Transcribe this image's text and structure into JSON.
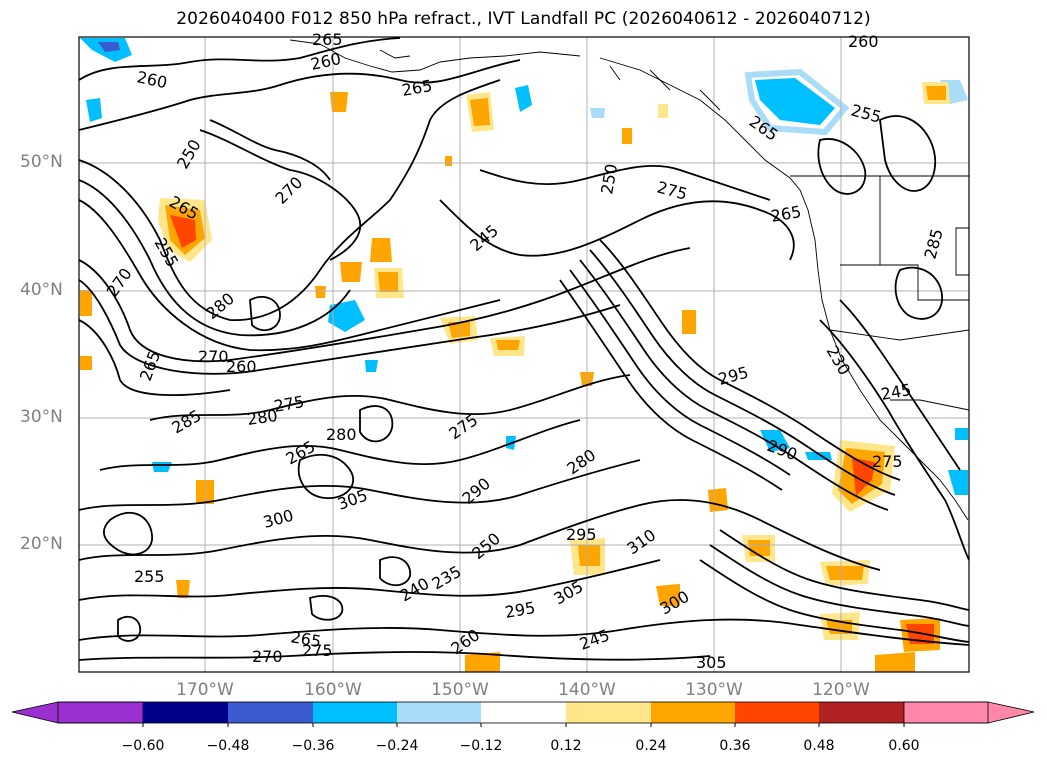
{
  "title": "2026040400 F012 850 hPa refract., IVT Landfall PC (2026040612 - 2026040712)",
  "map": {
    "lat_labels": [
      "50°N",
      "40°N",
      "30°N",
      "20°N"
    ],
    "lon_labels": [
      "170°W",
      "160°W",
      "150°W",
      "140°W",
      "130°W",
      "120°W"
    ],
    "contour_labels": [
      "260",
      "265",
      "260",
      "265",
      "260",
      "265",
      "255",
      "250",
      "265",
      "270",
      "255",
      "250",
      "245",
      "275",
      "265",
      "270",
      "280",
      "285",
      "270",
      "260",
      "265",
      "275",
      "285",
      "280",
      "280",
      "265",
      "275",
      "280",
      "290",
      "305",
      "300",
      "295",
      "310",
      "305",
      "300",
      "295",
      "270",
      "275",
      "265",
      "260",
      "245",
      "240",
      "235",
      "255",
      "250",
      "230",
      "245",
      "295",
      "290",
      "275",
      "305"
    ]
  },
  "colorbar": {
    "ticks": [
      "−0.60",
      "−0.48",
      "−0.36",
      "−0.24",
      "−0.12",
      "0.12",
      "0.24",
      "0.36",
      "0.48",
      "0.60"
    ],
    "colors": [
      "#9b30d0",
      "#00008b",
      "#3a5bd0",
      "#00bfff",
      "#a8dcf8",
      "#ffffff",
      "#ffe68a",
      "#ffa500",
      "#ff4500",
      "#b22222",
      "#ff88aa"
    ]
  }
}
